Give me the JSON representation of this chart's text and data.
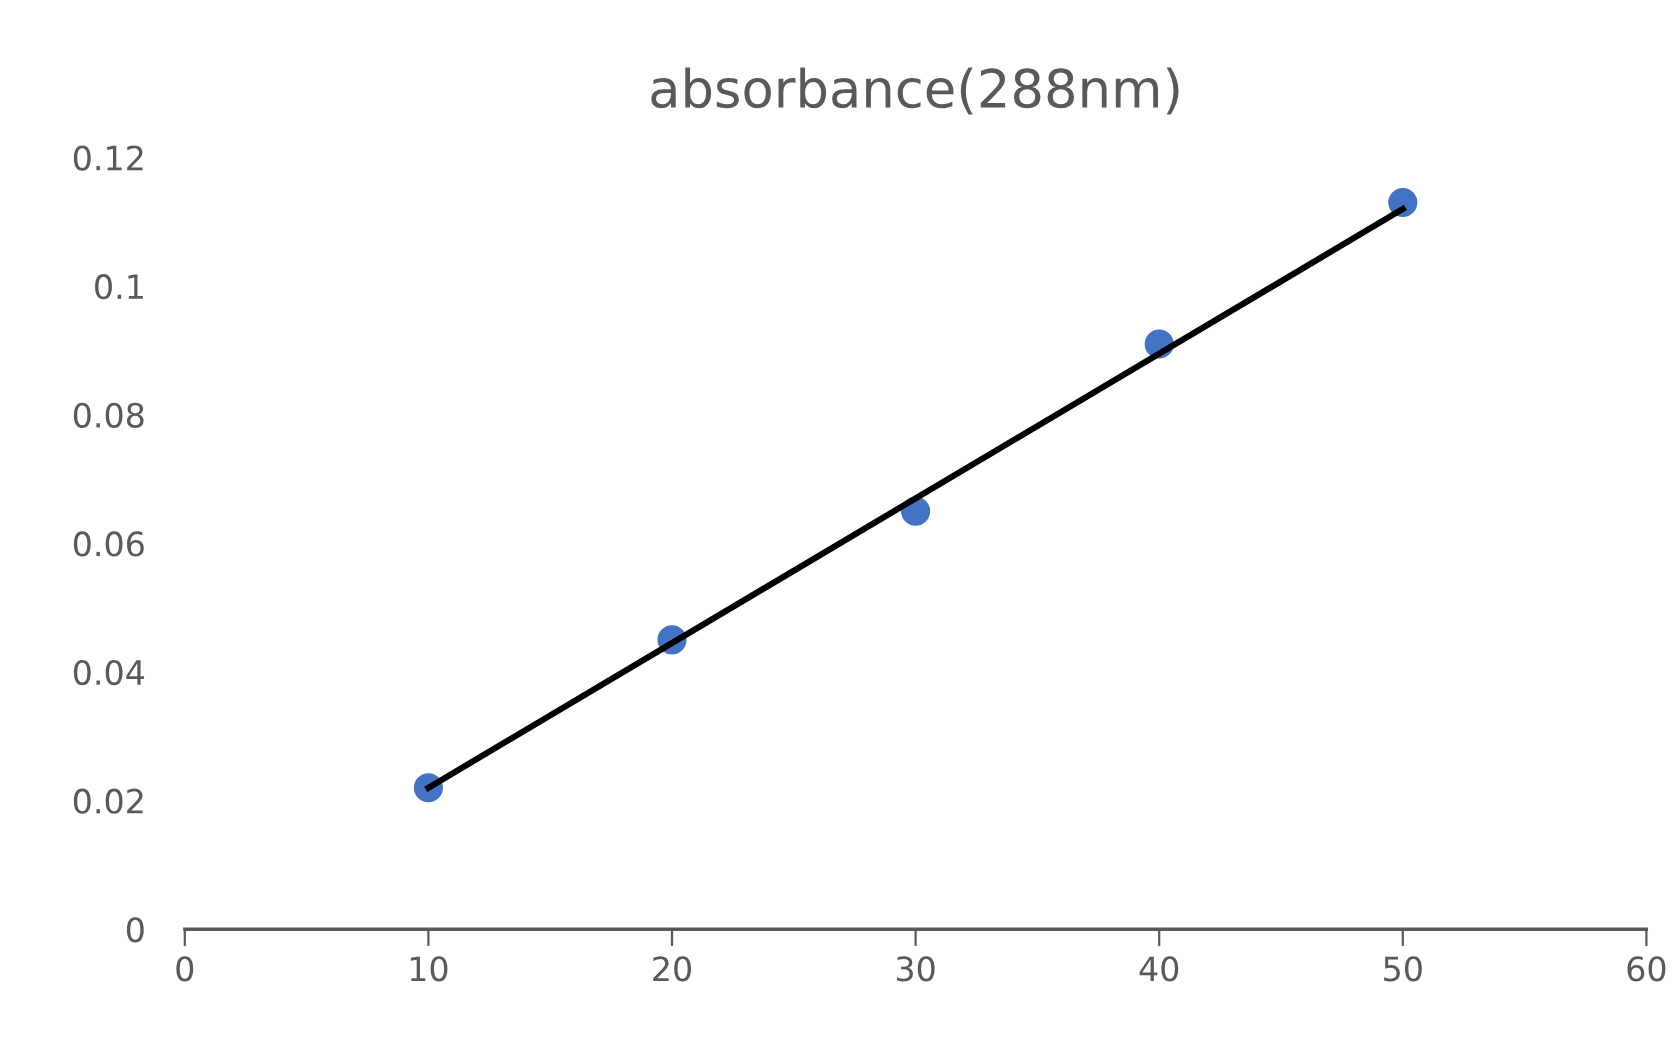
{
  "chart_data": {
    "type": "scatter",
    "title": "absorbance(288nm)",
    "x": [
      10,
      20,
      30,
      40,
      50
    ],
    "series": [
      {
        "color": "#4472c4",
        "values": [
          0.022,
          0.045,
          0.065,
          0.091,
          0.113
        ],
        "marker": "circle"
      },
      {
        "type": "line",
        "color": "#000000",
        "x": [
          10,
          50
        ],
        "values": [
          0.022,
          0.112
        ],
        "marker": "none",
        "line_style": "solid"
      }
    ],
    "xlim": [
      0,
      60
    ],
    "xticks": [
      0,
      10,
      20,
      30,
      40,
      50,
      60
    ],
    "ylim": [
      0,
      0.12
    ],
    "yticks": [
      0,
      0.02,
      0.04,
      0.06,
      0.08,
      0.1,
      0.12
    ],
    "grid": false,
    "legend": false
  }
}
